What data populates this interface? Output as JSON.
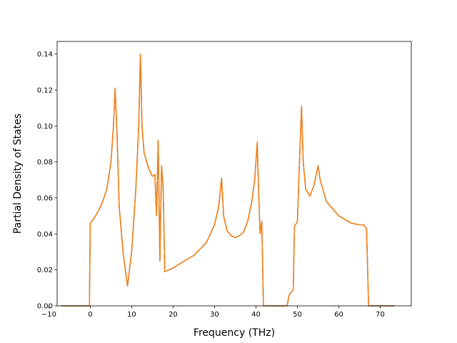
{
  "chart_data": {
    "type": "line",
    "title": "",
    "xlabel": "Frequency (THz)",
    "ylabel": "Partial Density of States",
    "xlim": [
      -8.0,
      77.5
    ],
    "ylim": [
      0.0,
      0.147
    ],
    "xticks": [
      -10,
      0,
      10,
      20,
      30,
      40,
      50,
      60,
      70
    ],
    "yticks": [
      0.0,
      0.02,
      0.04,
      0.06,
      0.08,
      0.1,
      0.12,
      0.14
    ],
    "xtick_labels": [
      "−10",
      "0",
      "10",
      "20",
      "30",
      "40",
      "50",
      "60",
      "70"
    ],
    "ytick_labels": [
      "0.00",
      "0.02",
      "0.04",
      "0.06",
      "0.08",
      "0.10",
      "0.12",
      "0.14"
    ],
    "grid": false,
    "legend": "none",
    "series": [
      {
        "color": "#1f77b4",
        "points": [
          [
            -7,
            0
          ],
          [
            -0.2,
            0
          ],
          [
            0,
            0.046
          ],
          [
            1,
            0.049
          ],
          [
            2,
            0.053
          ],
          [
            3,
            0.058
          ],
          [
            4,
            0.065
          ],
          [
            5,
            0.08
          ],
          [
            5.6,
            0.1
          ],
          [
            6,
            0.121
          ],
          [
            6.4,
            0.1
          ],
          [
            7,
            0.055
          ],
          [
            8,
            0.028
          ],
          [
            9,
            0.011
          ],
          [
            10,
            0.03
          ],
          [
            11,
            0.065
          ],
          [
            11.7,
            0.1
          ],
          [
            12.1,
            0.14
          ],
          [
            12.5,
            0.1
          ],
          [
            13,
            0.085
          ],
          [
            14,
            0.077
          ],
          [
            15,
            0.072
          ],
          [
            15.6,
            0.073
          ],
          [
            16,
            0.05
          ],
          [
            16.4,
            0.092
          ],
          [
            16.8,
            0.025
          ],
          [
            17.2,
            0.078
          ],
          [
            17.6,
            0.065
          ],
          [
            18,
            0.019
          ],
          [
            20,
            0.021
          ],
          [
            22,
            0.024
          ],
          [
            25,
            0.028
          ],
          [
            28,
            0.035
          ],
          [
            30,
            0.045
          ],
          [
            31,
            0.055
          ],
          [
            31.7,
            0.071
          ],
          [
            32.2,
            0.05
          ],
          [
            33,
            0.042
          ],
          [
            34,
            0.039
          ],
          [
            35,
            0.038
          ],
          [
            36,
            0.039
          ],
          [
            37,
            0.041
          ],
          [
            38,
            0.047
          ],
          [
            39,
            0.058
          ],
          [
            39.7,
            0.07
          ],
          [
            40.3,
            0.091
          ],
          [
            40.7,
            0.06
          ],
          [
            41,
            0.04
          ],
          [
            41.4,
            0.047
          ],
          [
            41.8,
            0
          ],
          [
            47.5,
            0
          ],
          [
            48,
            0.006
          ],
          [
            49,
            0.009
          ],
          [
            49.3,
            0.044
          ],
          [
            50,
            0.047
          ],
          [
            50.5,
            0.08
          ],
          [
            51,
            0.111
          ],
          [
            51.4,
            0.08
          ],
          [
            52,
            0.065
          ],
          [
            53,
            0.061
          ],
          [
            54,
            0.067
          ],
          [
            55,
            0.078
          ],
          [
            55.5,
            0.07
          ],
          [
            57,
            0.058
          ],
          [
            60,
            0.05
          ],
          [
            63,
            0.046
          ],
          [
            65,
            0.045
          ],
          [
            66,
            0.045
          ],
          [
            66.7,
            0.043
          ],
          [
            67.2,
            0
          ],
          [
            73.5,
            0
          ]
        ]
      },
      {
        "color": "#ff7f0e",
        "points": [
          [
            -7,
            0
          ],
          [
            -0.2,
            0
          ],
          [
            0,
            0.046
          ],
          [
            1,
            0.049
          ],
          [
            2,
            0.053
          ],
          [
            3,
            0.058
          ],
          [
            4,
            0.065
          ],
          [
            5,
            0.08
          ],
          [
            5.6,
            0.1
          ],
          [
            6,
            0.121
          ],
          [
            6.4,
            0.1
          ],
          [
            7,
            0.055
          ],
          [
            8,
            0.028
          ],
          [
            9,
            0.011
          ],
          [
            10,
            0.03
          ],
          [
            11,
            0.065
          ],
          [
            11.7,
            0.1
          ],
          [
            12.1,
            0.14
          ],
          [
            12.5,
            0.1
          ],
          [
            13,
            0.085
          ],
          [
            14,
            0.077
          ],
          [
            15,
            0.072
          ],
          [
            15.6,
            0.073
          ],
          [
            16,
            0.05
          ],
          [
            16.4,
            0.092
          ],
          [
            16.8,
            0.025
          ],
          [
            17.2,
            0.078
          ],
          [
            17.6,
            0.065
          ],
          [
            18,
            0.019
          ],
          [
            20,
            0.021
          ],
          [
            22,
            0.024
          ],
          [
            25,
            0.028
          ],
          [
            28,
            0.035
          ],
          [
            30,
            0.045
          ],
          [
            31,
            0.055
          ],
          [
            31.7,
            0.071
          ],
          [
            32.2,
            0.05
          ],
          [
            33,
            0.042
          ],
          [
            34,
            0.039
          ],
          [
            35,
            0.038
          ],
          [
            36,
            0.039
          ],
          [
            37,
            0.041
          ],
          [
            38,
            0.047
          ],
          [
            39,
            0.058
          ],
          [
            39.7,
            0.07
          ],
          [
            40.3,
            0.091
          ],
          [
            40.7,
            0.06
          ],
          [
            41,
            0.04
          ],
          [
            41.4,
            0.047
          ],
          [
            41.8,
            0
          ],
          [
            47.5,
            0
          ],
          [
            48,
            0.006
          ],
          [
            49,
            0.009
          ],
          [
            49.3,
            0.044
          ],
          [
            50,
            0.047
          ],
          [
            50.5,
            0.08
          ],
          [
            51,
            0.111
          ],
          [
            51.4,
            0.08
          ],
          [
            52,
            0.065
          ],
          [
            53,
            0.061
          ],
          [
            54,
            0.067
          ],
          [
            55,
            0.078
          ],
          [
            55.5,
            0.07
          ],
          [
            57,
            0.058
          ],
          [
            60,
            0.05
          ],
          [
            63,
            0.046
          ],
          [
            65,
            0.045
          ],
          [
            66,
            0.045
          ],
          [
            66.7,
            0.043
          ],
          [
            67.2,
            0
          ],
          [
            73.5,
            0
          ]
        ]
      }
    ]
  }
}
